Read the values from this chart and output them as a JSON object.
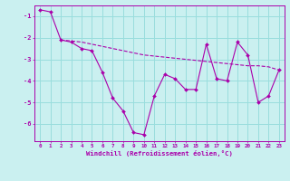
{
  "xlabel": "Windchill (Refroidissement éolien,°C)",
  "background_color": "#caf0f0",
  "grid_color": "#99dddd",
  "line_color": "#aa00aa",
  "x_values": [
    0,
    1,
    2,
    3,
    4,
    5,
    6,
    7,
    8,
    9,
    10,
    11,
    12,
    13,
    14,
    15,
    16,
    17,
    18,
    19,
    20,
    21,
    22,
    23
  ],
  "series1": [
    -0.7,
    -0.8,
    -2.1,
    -2.2,
    -2.5,
    -2.6,
    -3.6,
    -4.8,
    -5.4,
    -6.4,
    -6.5,
    -4.7,
    -3.7,
    -3.9,
    -4.4,
    -4.4,
    -2.3,
    -3.9,
    -4.0,
    -2.2,
    -2.8,
    -5.0,
    -4.7,
    -3.5
  ],
  "series2_x": [
    2,
    3,
    4,
    5,
    6,
    7,
    8,
    9,
    10,
    11,
    12,
    13,
    14,
    15,
    16,
    17,
    18,
    19,
    20,
    21,
    22,
    23
  ],
  "series2_y": [
    -2.1,
    -2.15,
    -2.2,
    -2.3,
    -2.4,
    -2.5,
    -2.6,
    -2.7,
    -2.8,
    -2.85,
    -2.9,
    -2.95,
    -3.0,
    -3.05,
    -3.1,
    -3.15,
    -3.2,
    -3.25,
    -3.3,
    -3.3,
    -3.35,
    -3.5
  ],
  "ylim": [
    -6.8,
    -0.5
  ],
  "xlim": [
    -0.5,
    23.5
  ],
  "yticks": [
    -6,
    -5,
    -4,
    -3,
    -2,
    -1
  ],
  "xticks": [
    0,
    1,
    2,
    3,
    4,
    5,
    6,
    7,
    8,
    9,
    10,
    11,
    12,
    13,
    14,
    15,
    16,
    17,
    18,
    19,
    20,
    21,
    22,
    23
  ]
}
